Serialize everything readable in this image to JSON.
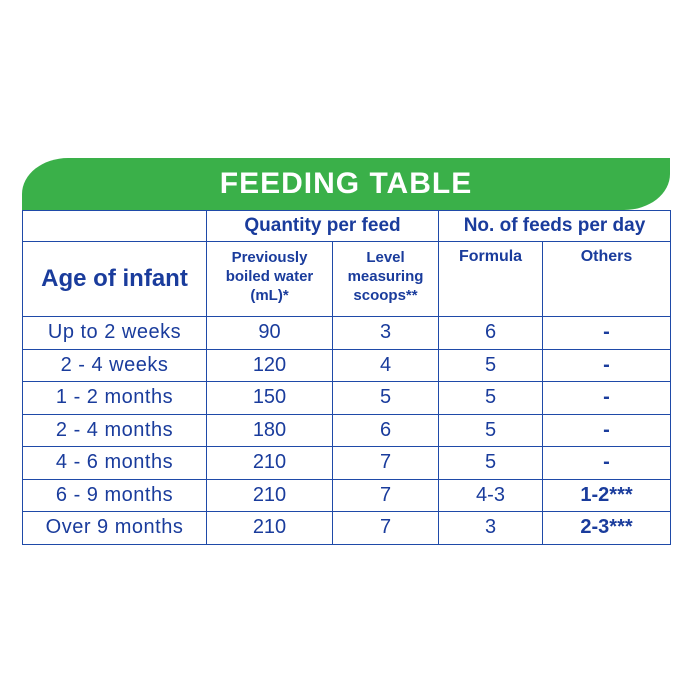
{
  "title": "FEEDING TABLE",
  "headers": {
    "quantity_group": "Quantity per feed",
    "feeds_group": "No. of feeds per day",
    "age": "Age of infant",
    "water_line1": "Previously",
    "water_line2": "boiled water (mL)*",
    "scoops_line1": "Level measuring",
    "scoops_line2": "scoops**",
    "formula": "Formula",
    "others": "Others"
  },
  "rows": [
    {
      "age": "Up to 2 weeks",
      "water": "90",
      "scoops": "3",
      "formula": "6",
      "others": "-"
    },
    {
      "age": "2 - 4 weeks",
      "water": "120",
      "scoops": "4",
      "formula": "5",
      "others": "-"
    },
    {
      "age": "1 - 2 months",
      "water": "150",
      "scoops": "5",
      "formula": "5",
      "others": "-"
    },
    {
      "age": "2 - 4 months",
      "water": "180",
      "scoops": "6",
      "formula": "5",
      "others": "-"
    },
    {
      "age": "4 - 6 months",
      "water": "210",
      "scoops": "7",
      "formula": "5",
      "others": "-"
    },
    {
      "age": "6 - 9 months",
      "water": "210",
      "scoops": "7",
      "formula": "4-3",
      "others": "1-2***"
    },
    {
      "age": "Over 9 months",
      "water": "210",
      "scoops": "7",
      "formula": "3",
      "others": "2-3***"
    }
  ],
  "colors": {
    "banner": "#3ab049",
    "text": "#1a3c9c",
    "border": "#1f4aa8"
  }
}
